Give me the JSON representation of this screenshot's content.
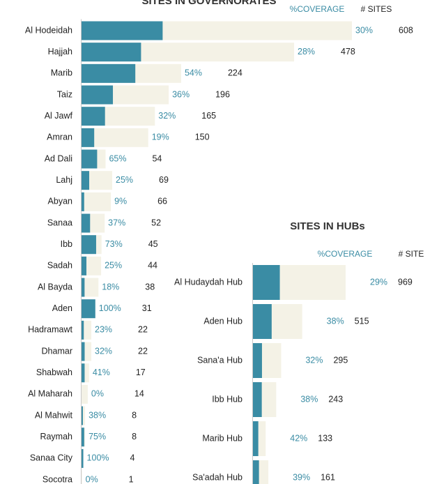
{
  "chart_data": [
    {
      "type": "bar",
      "title": "SITES IN GOVERNORATES",
      "categories": [
        "Al Hodeidah",
        "Hajjah",
        "Marib",
        "Taiz",
        "Al Jawf",
        "Amran",
        "Ad Dali",
        "Lahj",
        "Abyan",
        "Sanaa",
        "Ibb",
        "Sadah",
        "Al Bayda",
        "Aden",
        "Hadramawt",
        "Dhamar",
        "Shabwah",
        "Al Maharah",
        "Al Mahwit",
        "Raymah",
        "Sanaa City",
        "Socotra"
      ],
      "series": [
        {
          "name": "%COVERAGE",
          "color": "#3a8ca4",
          "values": [
            30,
            28,
            54,
            36,
            32,
            19,
            65,
            25,
            9,
            37,
            73,
            25,
            18,
            100,
            23,
            32,
            41,
            0,
            38,
            75,
            100,
            0
          ],
          "value_labels": [
            "30%",
            "28%",
            "54%",
            "36%",
            "32%",
            "19%",
            "65%",
            "25%",
            "9%",
            "37%",
            "73%",
            "25%",
            "18%",
            "100%",
            "23%",
            "32%",
            "41%",
            "0%",
            "38%",
            "75%",
            "100%",
            "0%"
          ]
        },
        {
          "name": "# SITES",
          "color": "#f4f2e6",
          "values": [
            608,
            478,
            224,
            196,
            165,
            150,
            54,
            69,
            66,
            52,
            45,
            44,
            38,
            31,
            22,
            22,
            17,
            14,
            8,
            8,
            4,
            1
          ]
        }
      ],
      "xlim": [
        0,
        608
      ]
    },
    {
      "type": "bar",
      "title": "SITES IN HUBs",
      "categories": [
        "Al Hudaydah Hub",
        "Aden Hub",
        "Sana'a Hub",
        "Ibb Hub",
        "Marib Hub",
        "Sa'adah Hub"
      ],
      "series": [
        {
          "name": "%COVERAGE",
          "color": "#3a8ca4",
          "values": [
            29,
            38,
            32,
            38,
            42,
            39
          ],
          "value_labels": [
            "29%",
            "38%",
            "32%",
            "38%",
            "42%",
            "39%"
          ]
        },
        {
          "name": "# SITE",
          "color": "#f4f2e6",
          "values": [
            969,
            515,
            295,
            243,
            133,
            161
          ]
        }
      ],
      "xlim": [
        0,
        969
      ]
    }
  ]
}
